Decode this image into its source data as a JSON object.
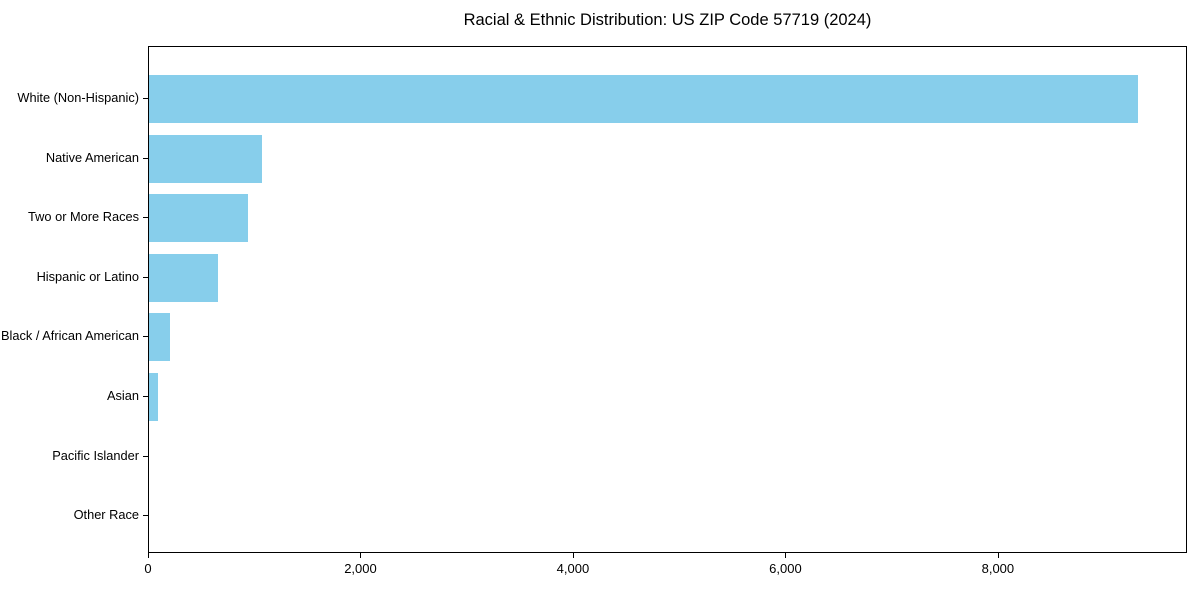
{
  "title": "Racial & Ethnic Distribution: US ZIP Code 57719 (2024)",
  "colors": {
    "bar": "#87CEEB",
    "spine": "#000000",
    "background": "#FFFFFF",
    "text": "#000000"
  },
  "chart_data": {
    "type": "bar",
    "orientation": "horizontal",
    "title": "Racial & Ethnic Distribution: US ZIP Code 57719 (2024)",
    "categories": [
      "White (Non-Hispanic)",
      "Native American",
      "Two or More Races",
      "Hispanic or Latino",
      "Black / African American",
      "Asian",
      "Pacific Islander",
      "Other Race"
    ],
    "values": [
      9310,
      1065,
      930,
      650,
      195,
      85,
      0,
      0
    ],
    "xlabel": "",
    "ylabel": "",
    "xlim": [
      0,
      9780
    ],
    "xticks": [
      0,
      2000,
      4000,
      6000,
      8000
    ],
    "xtick_labels": [
      "0",
      "2,000",
      "4,000",
      "6,000",
      "8,000"
    ],
    "bar_color": "#87CEEB",
    "grid": false,
    "legend": null
  }
}
